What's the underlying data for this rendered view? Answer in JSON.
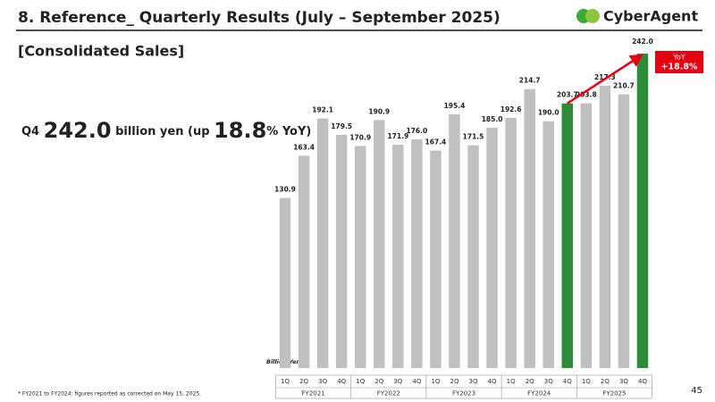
{
  "header": {
    "title": "8.  Reference_ Quarterly Results (July – September 2025)",
    "logo": "CyberAgent",
    "subtitle": "[Consolidated Sales]"
  },
  "headline": {
    "quarter": "Q4",
    "amount": "242.0",
    "text1": "billion yen (up",
    "rate": "18.8",
    "text2": "% YoY)"
  },
  "chart_data": {
    "type": "bar",
    "categories": [
      "1Q",
      "2Q",
      "3Q",
      "4Q",
      "1Q",
      "2Q",
      "3Q",
      "4Q",
      "1Q",
      "2Q",
      "3Q",
      "4Q",
      "1Q",
      "2Q",
      "3Q",
      "4Q",
      "1Q",
      "2Q",
      "3Q",
      "4Q"
    ],
    "group_labels": [
      "FY2021",
      "FY2022",
      "FY2023",
      "FY2024",
      "FY2025"
    ],
    "values": [
      130.9,
      163.4,
      192.1,
      179.5,
      170.9,
      190.9,
      171.9,
      176.0,
      167.4,
      195.4,
      171.5,
      185.0,
      192.6,
      214.7,
      190.0,
      203.7,
      203.8,
      217.3,
      210.7,
      242.0
    ],
    "value_labels": [
      "130.9",
      "163.4",
      "192.1",
      "179.5",
      "170.9",
      "190.9",
      "171.9",
      "176.0",
      "167.4",
      "195.4",
      "171.5",
      "185.0",
      "192.6",
      "214.7",
      "190.0",
      "203.7",
      "203.8",
      "217.3",
      "210.7",
      "242.0"
    ],
    "colors": [
      "#c0c0c0",
      "#c0c0c0",
      "#c0c0c0",
      "#c0c0c0",
      "#c0c0c0",
      "#c0c0c0",
      "#c0c0c0",
      "#c0c0c0",
      "#c0c0c0",
      "#c0c0c0",
      "#c0c0c0",
      "#c0c0c0",
      "#c0c0c0",
      "#c0c0c0",
      "#c0c0c0",
      "#2e8b3a",
      "#c0c0c0",
      "#c0c0c0",
      "#c0c0c0",
      "#2e8b3a"
    ],
    "ylim": [
      0,
      250
    ],
    "unit_label": "Billion Yen",
    "annotation": {
      "label": "YoY",
      "value": "+18.8%"
    }
  },
  "footnote": "* FY2021 to FY2024: figures reported as corrected on May 15, 2025.",
  "page_number": "45"
}
